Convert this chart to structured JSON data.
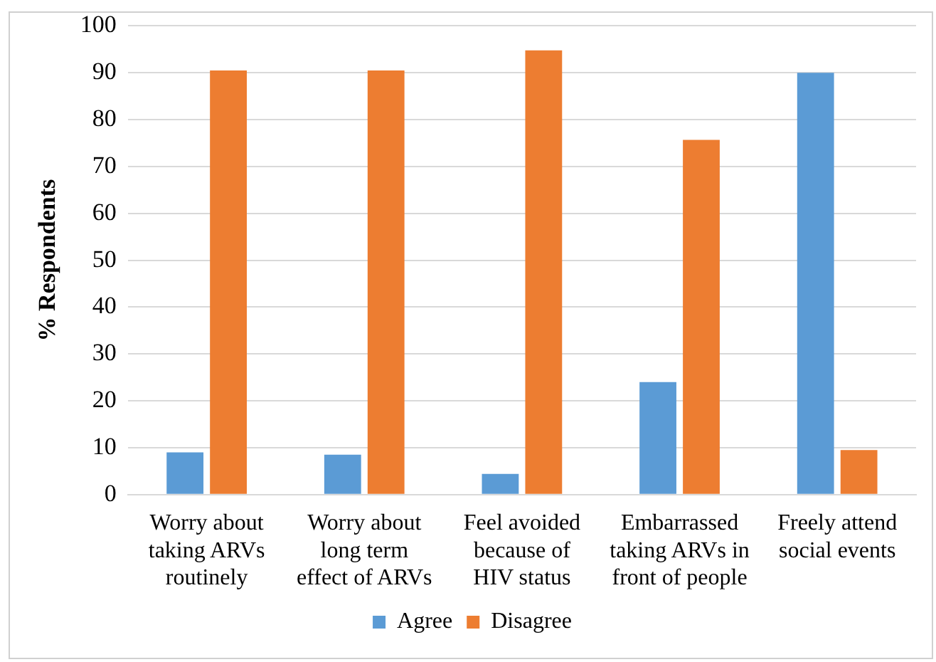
{
  "chart_data": {
    "type": "bar",
    "ylabel": "% Respondents",
    "categories": [
      "Worry about taking ARVs routinely",
      "Worry about long term effect of ARVs",
      "Feel avoided because of HIV status",
      "Embarrassed taking ARVs in front of people",
      "Freely attend social events"
    ],
    "series": [
      {
        "name": "Agree",
        "color": "#5b9bd5",
        "values": [
          9,
          8.5,
          4.4,
          24,
          90
        ]
      },
      {
        "name": "Disagree",
        "color": "#ed7d31",
        "values": [
          90.5,
          90.5,
          94.8,
          75.7,
          9.5
        ]
      }
    ],
    "ylim": [
      0,
      100
    ],
    "yticks": [
      0,
      10,
      20,
      30,
      40,
      50,
      60,
      70,
      80,
      90,
      100
    ],
    "grid": "y",
    "legend": "bottom"
  }
}
